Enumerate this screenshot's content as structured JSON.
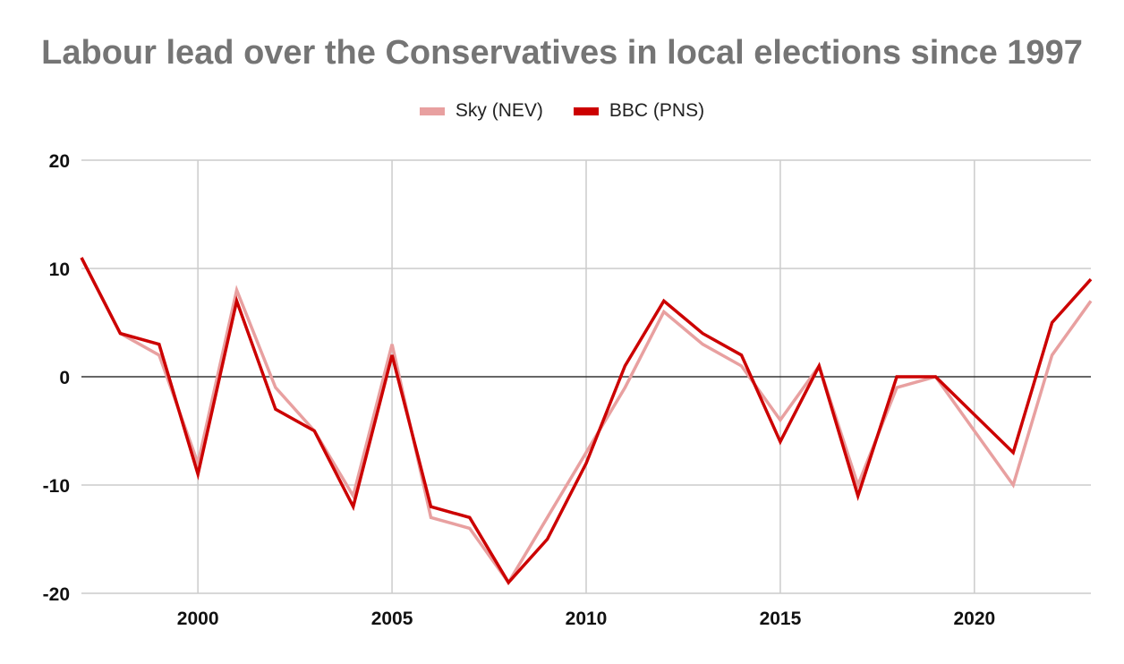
{
  "chart_data": {
    "type": "line",
    "title": "Labour lead over the Conservatives in local elections since 1997",
    "xlabel": "",
    "ylabel": "",
    "xlim": [
      1997,
      2023
    ],
    "ylim": [
      -20,
      20
    ],
    "x_ticks": [
      2000,
      2005,
      2010,
      2015,
      2020
    ],
    "y_ticks": [
      20,
      10,
      0,
      -10,
      -20
    ],
    "grid": true,
    "legend_position": "top-center",
    "x": [
      1997,
      1998,
      1999,
      2000,
      2001,
      2002,
      2003,
      2004,
      2005,
      2006,
      2007,
      2008,
      2009,
      2010,
      2011,
      2012,
      2013,
      2014,
      2015,
      2016,
      2017,
      2018,
      2019,
      2020,
      2021,
      2022,
      2023
    ],
    "series": [
      {
        "name": "Sky (NEV)",
        "color": "#e8a0a0",
        "values": [
          11,
          4,
          2,
          -8,
          8,
          -1,
          -5,
          -11,
          3,
          -13,
          -14,
          -19,
          -13,
          -7,
          -1,
          6,
          3,
          1,
          -4,
          1,
          -10,
          -1,
          0,
          -5,
          -10,
          2,
          7
        ]
      },
      {
        "name": "BBC (PNS)",
        "color": "#cc0000",
        "values": [
          11,
          4,
          3,
          -9,
          7,
          -3,
          -5,
          -12,
          2,
          -12,
          -13,
          -19,
          -15,
          -8,
          1,
          7,
          4,
          2,
          -6,
          1,
          -11,
          0,
          0,
          -3.5,
          -7,
          5,
          9
        ]
      }
    ]
  }
}
